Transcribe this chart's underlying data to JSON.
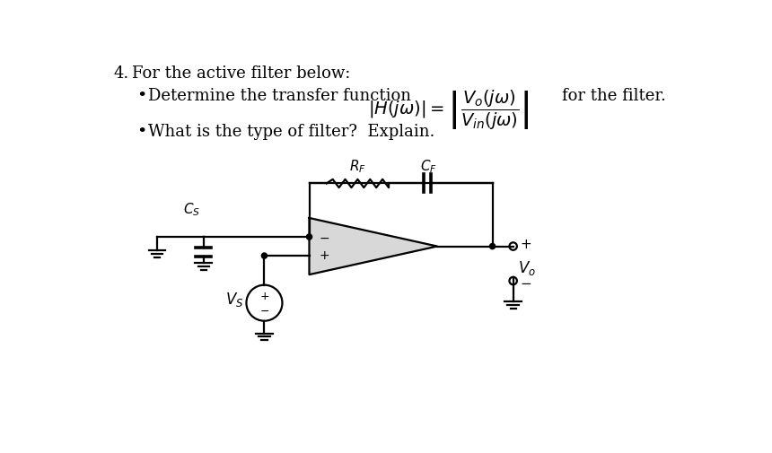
{
  "bg_color": "#ffffff",
  "line_color": "#000000",
  "fill_color": "#d8d8d8",
  "font_size_title": 13,
  "font_size_body": 13,
  "font_size_label": 12,
  "label_RF": "$R_F$",
  "label_CF": "$C_F$",
  "label_CS": "$C_S$",
  "label_Vs": "$V_S$",
  "label_Vo": "$V_o$"
}
